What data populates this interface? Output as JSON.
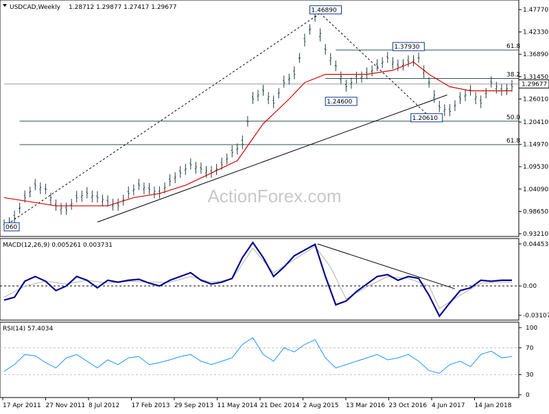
{
  "chart_data": [
    {
      "type": "candlestick",
      "title": "USDCAD,Weekly",
      "ohlc_text": "1.28712 1.29877 1.27417 1.29677",
      "last_price_label": "1.29677",
      "watermark": "ActionForex.com",
      "ylim": [
        0.9321,
        1.4777
      ],
      "y_ticks": [
        "1.47770",
        "1.42330",
        "1.36890",
        "1.31450",
        "1.26010",
        "1.20410",
        "1.14970",
        "1.09530",
        "1.04090",
        "0.98650",
        "0.93210"
      ],
      "x_ticks": [
        "17 Apr 2011",
        "27 Nov 2011",
        "8 Jul 2012",
        "17 Feb 2013",
        "29 Sep 2013",
        "11 May 2014",
        "21 Dec 2014",
        "2 Aug 2015",
        "13 Mar 2016",
        "23 Oct 2016",
        "4 Jun 2017",
        "14 Jan 2018"
      ],
      "price_path": [
        [
          0,
          0.95
        ],
        [
          4,
          0.97
        ],
        [
          8,
          1.02
        ],
        [
          12,
          1.05
        ],
        [
          16,
          1.04
        ],
        [
          20,
          1.0
        ],
        [
          24,
          0.99
        ],
        [
          28,
          1.02
        ],
        [
          32,
          1.03
        ],
        [
          36,
          1.02
        ],
        [
          40,
          1.01
        ],
        [
          44,
          1.0
        ],
        [
          48,
          1.03
        ],
        [
          52,
          1.05
        ],
        [
          56,
          1.04
        ],
        [
          60,
          1.03
        ],
        [
          64,
          1.06
        ],
        [
          68,
          1.08
        ],
        [
          72,
          1.1
        ],
        [
          76,
          1.09
        ],
        [
          80,
          1.08
        ],
        [
          84,
          1.1
        ],
        [
          88,
          1.13
        ],
        [
          92,
          1.15
        ],
        [
          96,
          1.26
        ],
        [
          100,
          1.28
        ],
        [
          104,
          1.25
        ],
        [
          108,
          1.3
        ],
        [
          112,
          1.32
        ],
        [
          116,
          1.4
        ],
        [
          120,
          1.46
        ],
        [
          124,
          1.38
        ],
        [
          128,
          1.34
        ],
        [
          132,
          1.29
        ],
        [
          136,
          1.31
        ],
        [
          140,
          1.32
        ],
        [
          144,
          1.34
        ],
        [
          148,
          1.36
        ],
        [
          152,
          1.34
        ],
        [
          156,
          1.35
        ],
        [
          160,
          1.36
        ],
        [
          164,
          1.3
        ],
        [
          168,
          1.24
        ],
        [
          172,
          1.23
        ],
        [
          176,
          1.26
        ],
        [
          180,
          1.28
        ],
        [
          184,
          1.25
        ],
        [
          188,
          1.3
        ],
        [
          192,
          1.28
        ],
        [
          196,
          1.29
        ]
      ],
      "moving_average": [
        [
          0,
          1.02
        ],
        [
          10,
          1.01
        ],
        [
          20,
          1.0
        ],
        [
          30,
          1.0
        ],
        [
          40,
          1.0
        ],
        [
          50,
          1.02
        ],
        [
          60,
          1.03
        ],
        [
          70,
          1.05
        ],
        [
          80,
          1.08
        ],
        [
          90,
          1.11
        ],
        [
          100,
          1.2
        ],
        [
          110,
          1.26
        ],
        [
          116,
          1.3
        ],
        [
          124,
          1.32
        ],
        [
          132,
          1.32
        ],
        [
          140,
          1.32
        ],
        [
          150,
          1.33
        ],
        [
          158,
          1.35
        ],
        [
          164,
          1.32
        ],
        [
          172,
          1.29
        ],
        [
          180,
          1.28
        ],
        [
          190,
          1.28
        ],
        [
          196,
          1.28
        ]
      ],
      "horizontal_lines": [
        {
          "price": 1.3793,
          "label": "61.8",
          "from_x": 128
        },
        {
          "price": 1.31,
          "label": "38.2",
          "from_x": 124
        },
        {
          "price": 1.2061,
          "label": "50.0",
          "from_x": 6
        },
        {
          "price": 1.149,
          "label": "61.8",
          "from_x": 6
        },
        {
          "price": 1.2967,
          "label": "",
          "from_x": 0
        }
      ],
      "annotations": [
        {
          "text": "1.46890",
          "x": 118,
          "y": 1.4689
        },
        {
          "text": "1.37930",
          "x": 150,
          "y": 1.3793
        },
        {
          "text": "1.24600",
          "x": 124,
          "y": 1.246
        },
        {
          "text": "1.20610",
          "x": 157,
          "y": 1.2061
        },
        {
          "text": "060",
          "x": 0,
          "y": 0.9406
        }
      ],
      "trend_lines": [
        {
          "from": [
            0,
            0.95
          ],
          "to": [
            122,
            1.4689
          ],
          "style": "dashed"
        },
        {
          "from": [
            122,
            1.4689
          ],
          "to": [
            166,
            1.2061
          ],
          "style": "dashed"
        },
        {
          "from": [
            36,
            0.9605
          ],
          "to": [
            171,
            1.27
          ],
          "style": "solid"
        }
      ]
    },
    {
      "type": "line",
      "title": "MACD(12,26,9) 0.005261 0.003731",
      "ylim": [
        -0.034,
        0.0473
      ],
      "y_ticks": [
        "0.044534",
        "0.00",
        "-0.031072"
      ],
      "zero_line": 0,
      "macd": [
        [
          0,
          -0.015
        ],
        [
          4,
          -0.012
        ],
        [
          8,
          0.005
        ],
        [
          12,
          0.01
        ],
        [
          16,
          0.005
        ],
        [
          20,
          -0.005
        ],
        [
          24,
          0.0
        ],
        [
          28,
          0.01
        ],
        [
          32,
          0.006
        ],
        [
          36,
          -0.002
        ],
        [
          40,
          0.006
        ],
        [
          44,
          0.004
        ],
        [
          48,
          0.006
        ],
        [
          52,
          0.007
        ],
        [
          56,
          0.003
        ],
        [
          60,
          0.0
        ],
        [
          64,
          0.006
        ],
        [
          68,
          0.01
        ],
        [
          72,
          0.014
        ],
        [
          76,
          0.006
        ],
        [
          80,
          0.002
        ],
        [
          84,
          0.004
        ],
        [
          88,
          0.008
        ],
        [
          92,
          0.03
        ],
        [
          96,
          0.046
        ],
        [
          100,
          0.03
        ],
        [
          104,
          0.01
        ],
        [
          108,
          0.02
        ],
        [
          112,
          0.032
        ],
        [
          116,
          0.038
        ],
        [
          120,
          0.044
        ],
        [
          124,
          0.01
        ],
        [
          128,
          -0.02
        ],
        [
          132,
          -0.016
        ],
        [
          136,
          -0.006
        ],
        [
          140,
          0.002
        ],
        [
          144,
          0.01
        ],
        [
          148,
          0.012
        ],
        [
          152,
          0.006
        ],
        [
          156,
          0.01
        ],
        [
          160,
          0.008
        ],
        [
          164,
          -0.01
        ],
        [
          168,
          -0.032
        ],
        [
          172,
          -0.018
        ],
        [
          176,
          -0.005
        ],
        [
          180,
          -0.002
        ],
        [
          184,
          0.006
        ],
        [
          188,
          0.005
        ],
        [
          192,
          0.006
        ],
        [
          196,
          0.006
        ]
      ],
      "signal": [
        [
          0,
          -0.012
        ],
        [
          8,
          0.0
        ],
        [
          16,
          0.005
        ],
        [
          24,
          0.002
        ],
        [
          32,
          0.006
        ],
        [
          40,
          0.003
        ],
        [
          48,
          0.005
        ],
        [
          56,
          0.004
        ],
        [
          64,
          0.004
        ],
        [
          72,
          0.01
        ],
        [
          80,
          0.004
        ],
        [
          88,
          0.007
        ],
        [
          96,
          0.04
        ],
        [
          104,
          0.014
        ],
        [
          112,
          0.028
        ],
        [
          120,
          0.042
        ],
        [
          126,
          0.02
        ],
        [
          132,
          -0.014
        ],
        [
          140,
          -0.001
        ],
        [
          148,
          0.01
        ],
        [
          156,
          0.008
        ],
        [
          164,
          0.0
        ],
        [
          168,
          -0.024
        ],
        [
          176,
          -0.01
        ],
        [
          184,
          0.003
        ],
        [
          192,
          0.004
        ],
        [
          196,
          0.004
        ]
      ],
      "trend_line": {
        "from": [
          121,
          0.0445
        ],
        "to": [
          174,
          -0.003
        ]
      }
    },
    {
      "type": "line",
      "title": "RSI(14) 57.4034",
      "ylim": [
        0,
        100
      ],
      "y_ticks": [
        "100",
        "70",
        "30",
        "0"
      ],
      "levels": [
        70,
        30
      ],
      "rsi": [
        [
          0,
          35
        ],
        [
          4,
          45
        ],
        [
          8,
          60
        ],
        [
          12,
          58
        ],
        [
          16,
          48
        ],
        [
          20,
          40
        ],
        [
          24,
          55
        ],
        [
          28,
          60
        ],
        [
          32,
          50
        ],
        [
          36,
          40
        ],
        [
          40,
          52
        ],
        [
          44,
          45
        ],
        [
          48,
          55
        ],
        [
          52,
          57
        ],
        [
          56,
          45
        ],
        [
          60,
          48
        ],
        [
          64,
          52
        ],
        [
          68,
          57
        ],
        [
          72,
          60
        ],
        [
          76,
          50
        ],
        [
          80,
          45
        ],
        [
          84,
          50
        ],
        [
          88,
          55
        ],
        [
          92,
          75
        ],
        [
          96,
          85
        ],
        [
          100,
          60
        ],
        [
          104,
          50
        ],
        [
          108,
          70
        ],
        [
          112,
          64
        ],
        [
          116,
          75
        ],
        [
          120,
          82
        ],
        [
          124,
          55
        ],
        [
          128,
          40
        ],
        [
          132,
          45
        ],
        [
          136,
          50
        ],
        [
          140,
          55
        ],
        [
          144,
          60
        ],
        [
          148,
          52
        ],
        [
          152,
          55
        ],
        [
          156,
          60
        ],
        [
          160,
          50
        ],
        [
          164,
          36
        ],
        [
          168,
          32
        ],
        [
          172,
          45
        ],
        [
          176,
          50
        ],
        [
          180,
          42
        ],
        [
          184,
          60
        ],
        [
          188,
          65
        ],
        [
          192,
          55
        ],
        [
          196,
          57
        ]
      ]
    }
  ]
}
